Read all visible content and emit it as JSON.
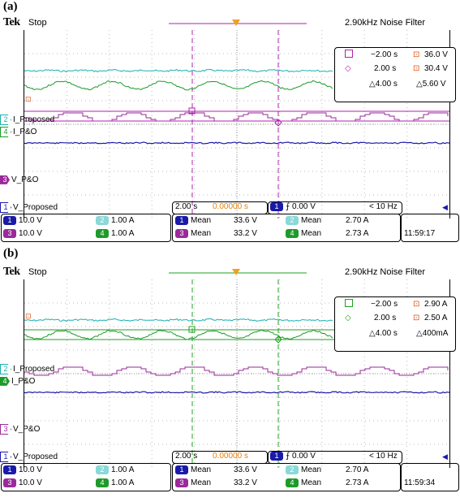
{
  "panels": [
    {
      "label": "(a)",
      "brand": "Tek",
      "status": "Stop",
      "filter": "2.90kHz  Noise Filter",
      "ch_labels": {
        "i_prop": "I_Proposed",
        "i_po": "I_P&O",
        "v_po": "V_P&O",
        "v_prop": "V_Proposed"
      },
      "ch_nums": {
        "i_prop": "2",
        "i_po": "4",
        "v_po": "3",
        "v_prop": "1"
      },
      "cursor_color": "#b020b0",
      "cursor": {
        "t1": "−2.00 s",
        "v1": "36.0 V",
        "t2": "2.00 s",
        "v2": "30.4 V",
        "dt": "△4.00 s",
        "dv": "△5.60 V"
      },
      "timebase": "2.00 s",
      "delay": "0.00000 s",
      "trigger_ch": "1",
      "trigger_level": "0.00 V",
      "trigger_freq": "< 10 Hz",
      "scales": [
        {
          "ch": "1",
          "val": "10.0 V"
        },
        {
          "ch": "2",
          "val": "1.00 A"
        },
        {
          "ch": "3",
          "val": "10.0 V"
        },
        {
          "ch": "4",
          "val": "1.00 A"
        }
      ],
      "means": [
        {
          "ch": "1",
          "label": "Mean",
          "val": "33.6 V"
        },
        {
          "ch": "2",
          "label": "Mean",
          "val": "2.70 A"
        },
        {
          "ch": "3",
          "label": "Mean",
          "val": "33.2 V"
        },
        {
          "ch": "4",
          "label": "Mean",
          "val": "2.73 A"
        }
      ],
      "time": "11:59:17"
    },
    {
      "label": "(b)",
      "brand": "Tek",
      "status": "Stop",
      "filter": "2.90kHz  Noise Filter",
      "ch_labels": {
        "i_prop": "I_Proposed",
        "i_po": "I_P&O",
        "v_po": "V_P&O",
        "v_prop": "V_Proposed"
      },
      "ch_nums": {
        "i_prop": "2",
        "i_po": "4",
        "v_po": "3",
        "v_prop": "1"
      },
      "cursor_color": "#20a020",
      "cursor": {
        "t1": "−2.00 s",
        "v1": "2.90 A",
        "t2": "2.00 s",
        "v2": "2.50 A",
        "dt": "△4.00 s",
        "dv": "△400mA"
      },
      "timebase": "2.00 s",
      "delay": "0.00000 s",
      "trigger_ch": "1",
      "trigger_level": "0.00 V",
      "trigger_freq": "< 10 Hz",
      "scales": [
        {
          "ch": "1",
          "val": "10.0 V"
        },
        {
          "ch": "2",
          "val": "1.00 A"
        },
        {
          "ch": "3",
          "val": "10.0 V"
        },
        {
          "ch": "4",
          "val": "1.00 A"
        }
      ],
      "means": [
        {
          "ch": "1",
          "label": "Mean",
          "val": "33.6 V"
        },
        {
          "ch": "2",
          "label": "Mean",
          "val": "2.70 A"
        },
        {
          "ch": "3",
          "label": "Mean",
          "val": "33.2 V"
        },
        {
          "ch": "4",
          "label": "Mean",
          "val": "2.73 A"
        }
      ],
      "time": "11:59:34"
    }
  ],
  "colors": {
    "ch1": "#1a1aa8",
    "ch2": "#1ab0b0",
    "ch3": "#9a2a9a",
    "ch4": "#1e9a2a",
    "trigger": "#f0a020"
  }
}
